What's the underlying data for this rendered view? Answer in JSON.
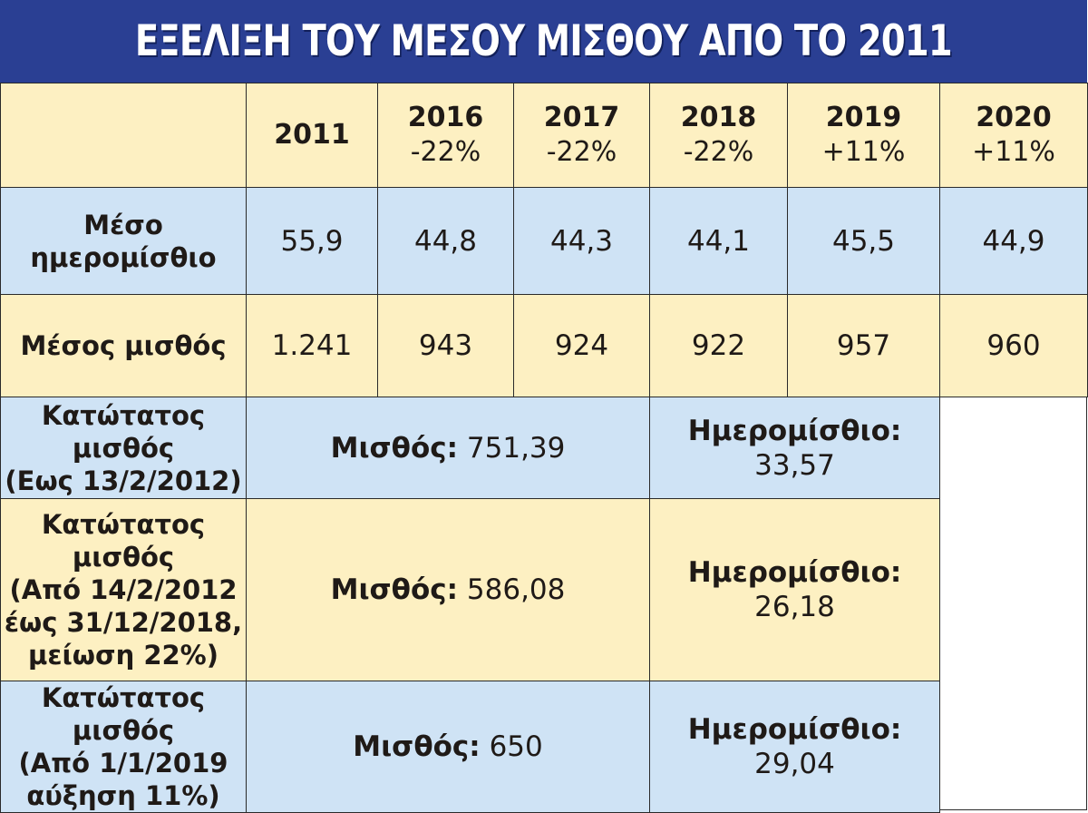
{
  "title": "ΕΞΕΛΙΞΗ ΤΟΥ ΜΕΣΟΥ ΜΙΣΘΟΥ ΑΠΟ ΤΟ 2011",
  "header": {
    "years": [
      {
        "year": "2011",
        "change": ""
      },
      {
        "year": "2016",
        "change": "-22%"
      },
      {
        "year": "2017",
        "change": "-22%"
      },
      {
        "year": "2018",
        "change": "-22%"
      },
      {
        "year": "2019",
        "change": "+11%"
      },
      {
        "year": "2020",
        "change": "+11%"
      }
    ]
  },
  "rows": [
    {
      "label_line1": "Μέσο",
      "label_line2": "ημερομίσθιο",
      "values": [
        "55,9",
        "44,8",
        "44,3",
        "44,1",
        "45,5",
        "44,9"
      ]
    },
    {
      "label": "Μέσος μισθός",
      "values": [
        "1.241",
        "943",
        "924",
        "922",
        "957",
        "960"
      ]
    }
  ],
  "minimum_wage": [
    {
      "label_lines": [
        "Κατώτατος μισθός",
        "(Εως 13/2/2012)"
      ],
      "salary_label": "Μισθός:",
      "salary_value": "751,39",
      "daily_label": "Ημερομίσθιο:",
      "daily_value": "33,57"
    },
    {
      "label_lines": [
        "Κατώτατος μισθός",
        "(Από 14/2/2012",
        "έως 31/12/2018,",
        "μείωση 22%)"
      ],
      "salary_label": "Μισθός:",
      "salary_value": "586,08",
      "daily_label": "Ημερομίσθιο:",
      "daily_value": "26,18"
    },
    {
      "label_lines": [
        "Κατώτατος μισθός",
        "(Από 1/1/2019",
        "αύξηση 11%)"
      ],
      "salary_label": "Μισθός:",
      "salary_value": "650",
      "daily_label": "Ημερομίσθιο:",
      "daily_value": "29,04"
    }
  ],
  "colors": {
    "title_bg": "#2a3f93",
    "yellow_cell": "#fdf0c2",
    "blue_cell": "#cfe3f5"
  }
}
